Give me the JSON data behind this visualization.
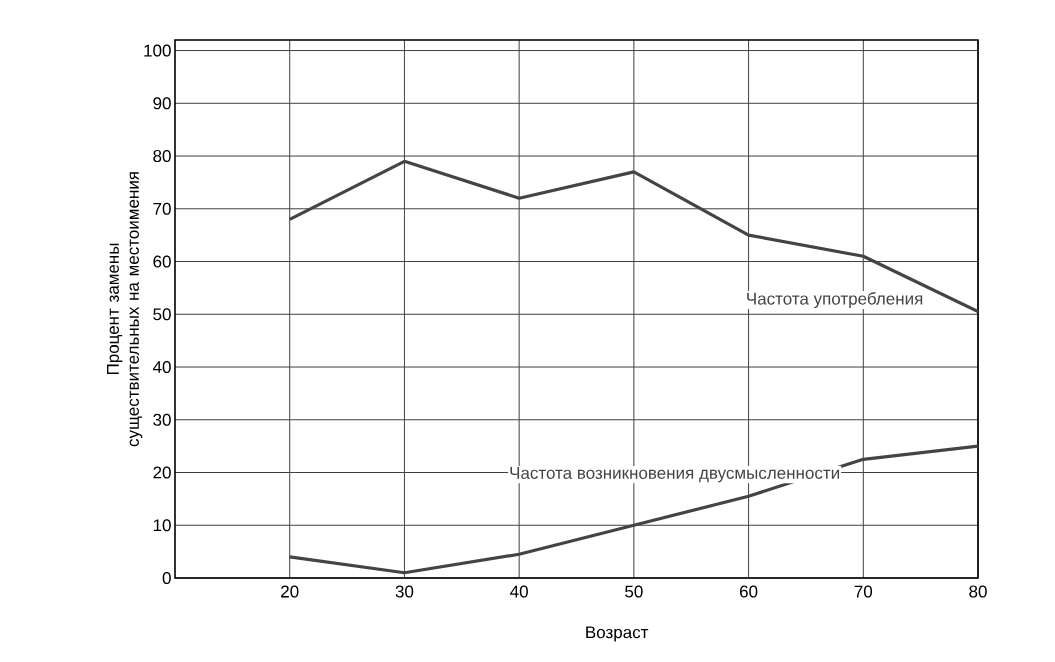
{
  "chart_data": {
    "type": "line",
    "xlabel": "Возраст",
    "ylabel": "Процент замены существительных на местоимения",
    "x": [
      20,
      30,
      40,
      50,
      60,
      70,
      80
    ],
    "series": [
      {
        "name": "Частота употребления",
        "color": "#444444",
        "values": [
          68,
          79,
          72,
          77,
          65,
          61,
          50.5
        ]
      },
      {
        "name": "Частота возникновения двусмысленности",
        "color": "#444444",
        "values": [
          4,
          1,
          4.5,
          10,
          15.5,
          22.5,
          25
        ]
      }
    ],
    "xlim": [
      10,
      80
    ],
    "ylim": [
      0,
      102
    ],
    "xticks": [
      20,
      30,
      40,
      50,
      60,
      70,
      80
    ],
    "yticks": [
      0,
      10,
      20,
      30,
      40,
      50,
      60,
      70,
      80,
      90,
      100
    ],
    "grid": true,
    "legend": false,
    "marker": "none",
    "line_style": "solid"
  }
}
